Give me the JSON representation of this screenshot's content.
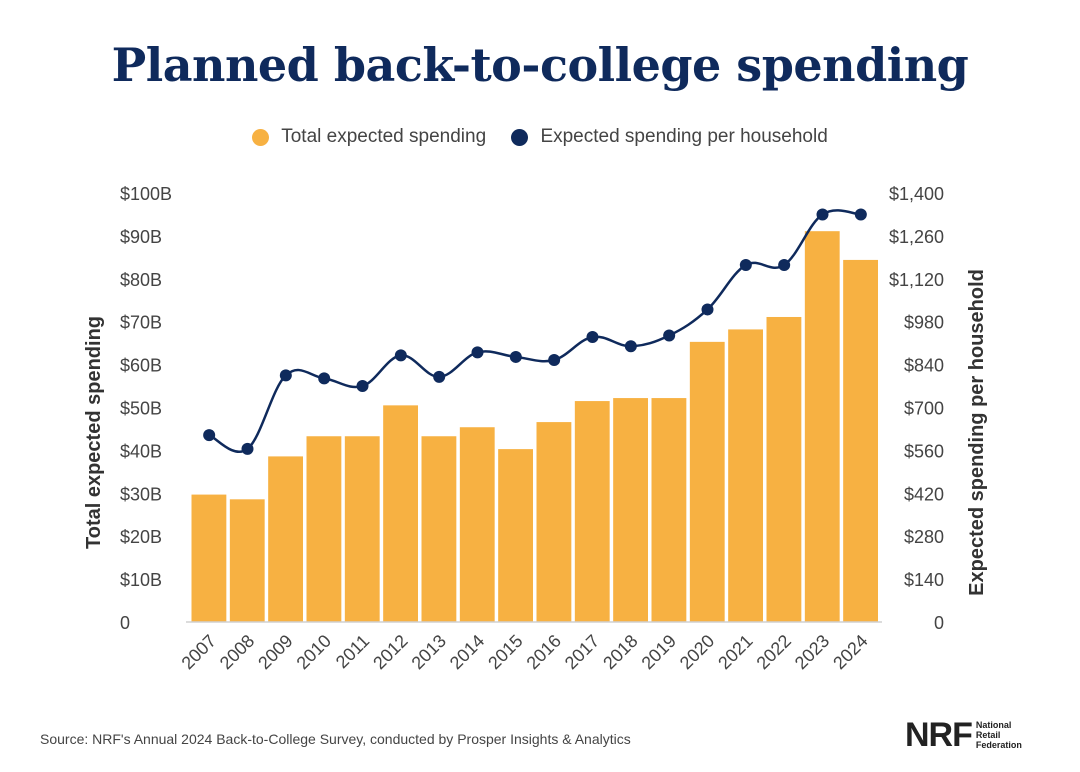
{
  "title": "Planned back-to-college spending",
  "legend": {
    "total": "Total expected spending",
    "household": "Expected spending per household"
  },
  "source": "Source: NRF's Annual 2024 Back-to-College Survey, conducted by Prosper Insights & Analytics",
  "logo": {
    "mark": "NRF",
    "line1": "National",
    "line2": "Retail",
    "line3": "Federation"
  },
  "colors": {
    "bar": "#f7b142",
    "line": "#0f2a5c",
    "title": "#0f2a5c"
  },
  "chart_data": {
    "type": "bar",
    "title": "Planned back-to-college spending",
    "categories": [
      "2007",
      "2008",
      "2009",
      "2010",
      "2011",
      "2012",
      "2013",
      "2014",
      "2015",
      "2016",
      "2017",
      "2018",
      "2019",
      "2020",
      "2021",
      "2022",
      "2023",
      "2024"
    ],
    "series": [
      {
        "name": "Total expected spending",
        "type": "bar",
        "axis": "left",
        "values": [
          29.7,
          28.6,
          38.6,
          43.3,
          43.3,
          50.5,
          43.3,
          45.4,
          40.3,
          46.6,
          51.5,
          52.2,
          52.2,
          65.3,
          68.2,
          71.1,
          91.1,
          84.4
        ]
      },
      {
        "name": "Expected spending per household",
        "type": "line",
        "axis": "right",
        "values": [
          610,
          565,
          805,
          795,
          770,
          870,
          800,
          880,
          865,
          855,
          930,
          900,
          935,
          1020,
          1165,
          1165,
          1330,
          1330
        ]
      }
    ],
    "ylabel_left": "Total expected spending",
    "ylabel_right": "Expected spending per household",
    "ylim_left": [
      0,
      100
    ],
    "ylim_right": [
      0,
      1400
    ],
    "yticks_left": [
      "0",
      "$10B",
      "$20B",
      "$30B",
      "$40B",
      "$50B",
      "$60B",
      "$70B",
      "$80B",
      "$90B",
      "$100B"
    ],
    "yticks_right": [
      "0",
      "$140",
      "$280",
      "$420",
      "$560",
      "$700",
      "$840",
      "$980",
      "$1,120",
      "$1,260",
      "$1,400"
    ],
    "grid": false,
    "legend_position": "top-center"
  }
}
